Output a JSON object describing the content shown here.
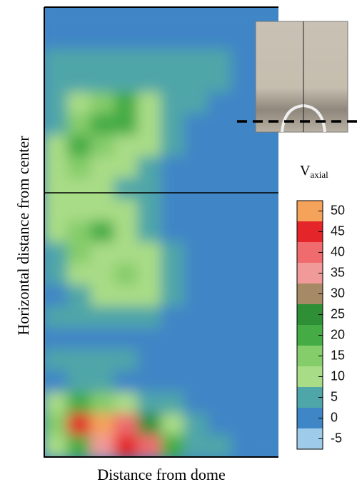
{
  "chart_data": {
    "type": "heatmap",
    "x_label": "Distance from dome",
    "y_label": "Horizontal distance from center",
    "colorbar_label": {
      "main": "V",
      "sub": "axial"
    },
    "clim": [
      -7.5,
      52.5
    ],
    "cticks": [
      -5,
      0,
      5,
      10,
      15,
      20,
      25,
      30,
      35,
      40,
      45,
      50
    ],
    "colors": [
      "#9fcbea",
      "#3f86c6",
      "#4fa6a8",
      "#a9dc86",
      "#85cc6a",
      "#45ac45",
      "#2e8f36",
      "#a68a66",
      "#f19a9a",
      "#ef6b6e",
      "#e4262b",
      "#f5a35a"
    ],
    "z": [
      [
        2,
        2,
        2,
        2,
        2,
        2,
        2,
        2,
        2,
        2
      ],
      [
        2,
        2,
        2,
        2,
        2,
        2,
        2,
        2,
        2,
        2
      ],
      [
        3,
        3,
        4,
        5,
        5,
        5,
        4,
        3,
        2,
        2
      ],
      [
        3,
        3,
        6,
        6,
        6,
        5,
        4,
        3,
        2,
        2
      ],
      [
        3,
        12,
        16,
        18,
        10,
        4,
        3,
        2,
        2,
        2
      ],
      [
        6,
        15,
        20,
        18,
        12,
        5,
        2,
        2,
        2,
        2
      ],
      [
        12,
        18,
        15,
        12,
        8,
        3,
        2,
        2,
        2,
        2
      ],
      [
        10,
        14,
        12,
        8,
        4,
        2,
        2,
        2,
        2,
        2
      ],
      [
        8,
        10,
        8,
        5,
        3,
        2,
        2,
        2,
        2,
        2
      ],
      [
        10,
        12,
        12,
        10,
        4,
        2,
        2,
        2,
        2,
        2
      ],
      [
        8,
        15,
        18,
        12,
        6,
        2,
        2,
        2,
        2,
        2
      ],
      [
        6,
        14,
        12,
        12,
        8,
        3,
        2,
        2,
        2,
        2
      ],
      [
        3,
        8,
        12,
        13,
        10,
        4,
        2,
        2,
        2,
        2
      ],
      [
        2,
        3,
        10,
        12,
        10,
        3,
        2,
        2,
        2,
        2
      ],
      [
        4,
        4,
        5,
        6,
        5,
        2,
        1,
        1,
        1,
        1
      ],
      [
        2,
        2,
        2,
        2,
        2,
        1,
        1,
        1,
        1,
        1
      ],
      [
        5,
        5,
        5,
        5,
        1,
        1,
        1,
        1,
        1,
        1
      ],
      [
        2,
        4,
        3,
        1,
        0,
        0,
        0,
        0,
        0,
        0
      ],
      [
        12,
        22,
        15,
        10,
        6,
        4,
        1,
        1,
        1,
        1
      ],
      [
        15,
        45,
        48,
        40,
        25,
        12,
        5,
        1,
        1,
        1
      ],
      [
        8,
        20,
        35,
        45,
        40,
        20,
        6,
        3,
        1,
        1
      ]
    ]
  }
}
